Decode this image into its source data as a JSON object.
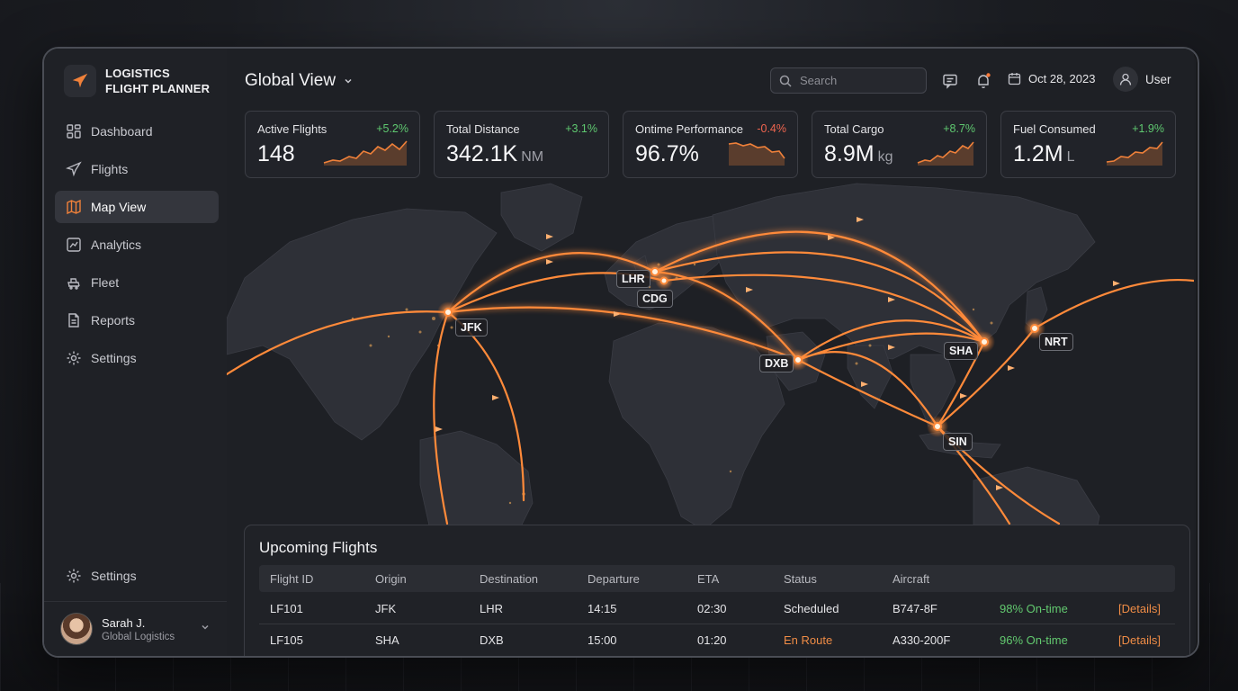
{
  "app": {
    "name_line1": "LOGISTICS",
    "name_line2": "FLIGHT PLANNER"
  },
  "sidebar": {
    "items": [
      {
        "label": "Dashboard",
        "icon": "dashboard-icon"
      },
      {
        "label": "Flights",
        "icon": "plane-icon"
      },
      {
        "label": "Map View",
        "icon": "map-icon",
        "active": true
      },
      {
        "label": "Analytics",
        "icon": "analytics-icon"
      },
      {
        "label": "Fleet",
        "icon": "fleet-icon"
      },
      {
        "label": "Reports",
        "icon": "reports-icon"
      },
      {
        "label": "Settings",
        "icon": "gear-icon"
      }
    ],
    "bottom_settings": "Settings",
    "user": {
      "name": "Sarah J.",
      "org": "Global Logistics"
    }
  },
  "header": {
    "view_title": "Global View",
    "search_placeholder": "Search",
    "date": "Oct 28, 2023",
    "user_label": "User"
  },
  "kpis": [
    {
      "label": "Active Flights",
      "value": "148",
      "unit": "",
      "delta": "+5.2%",
      "trend": "up"
    },
    {
      "label": "Total Distance",
      "value": "342.1K",
      "unit": "NM",
      "delta": "+3.1%",
      "trend": "up"
    },
    {
      "label": "Ontime Performance",
      "value": "96.7%",
      "unit": "",
      "delta": "-0.4%",
      "trend": "down"
    },
    {
      "label": "Total Cargo",
      "value": "8.9M",
      "unit": "kg",
      "delta": "+8.7%",
      "trend": "up"
    },
    {
      "label": "Fuel Consumed",
      "value": "1.2M",
      "unit": "L",
      "delta": "+1.9%",
      "trend": "up"
    }
  ],
  "map": {
    "cities": [
      "LHR",
      "CDG",
      "JFK",
      "DXB",
      "SHA",
      "NRT",
      "SIN"
    ]
  },
  "flights": {
    "title": "Upcoming Flights",
    "columns": [
      "Flight ID",
      "Origin",
      "Destination",
      "Departure",
      "ETA",
      "Status",
      "Aircraft"
    ],
    "rows": [
      {
        "id": "LF101",
        "origin": "JFK",
        "destination": "LHR",
        "departure": "14:15",
        "eta": "02:30",
        "status": "Scheduled",
        "aircraft": "B747-8F",
        "ontime": "98% On-time",
        "action": "[Details]"
      },
      {
        "id": "LF105",
        "origin": "SHA",
        "destination": "DXB",
        "departure": "15:00",
        "eta": "01:20",
        "status": "En Route",
        "aircraft": "A330-200F",
        "ontime": "96% On-time",
        "action": "[Details]"
      }
    ]
  },
  "colors": {
    "accent": "#f0813a",
    "positive": "#5fc870",
    "negative": "#f0654f",
    "background": "#1d1f24"
  }
}
